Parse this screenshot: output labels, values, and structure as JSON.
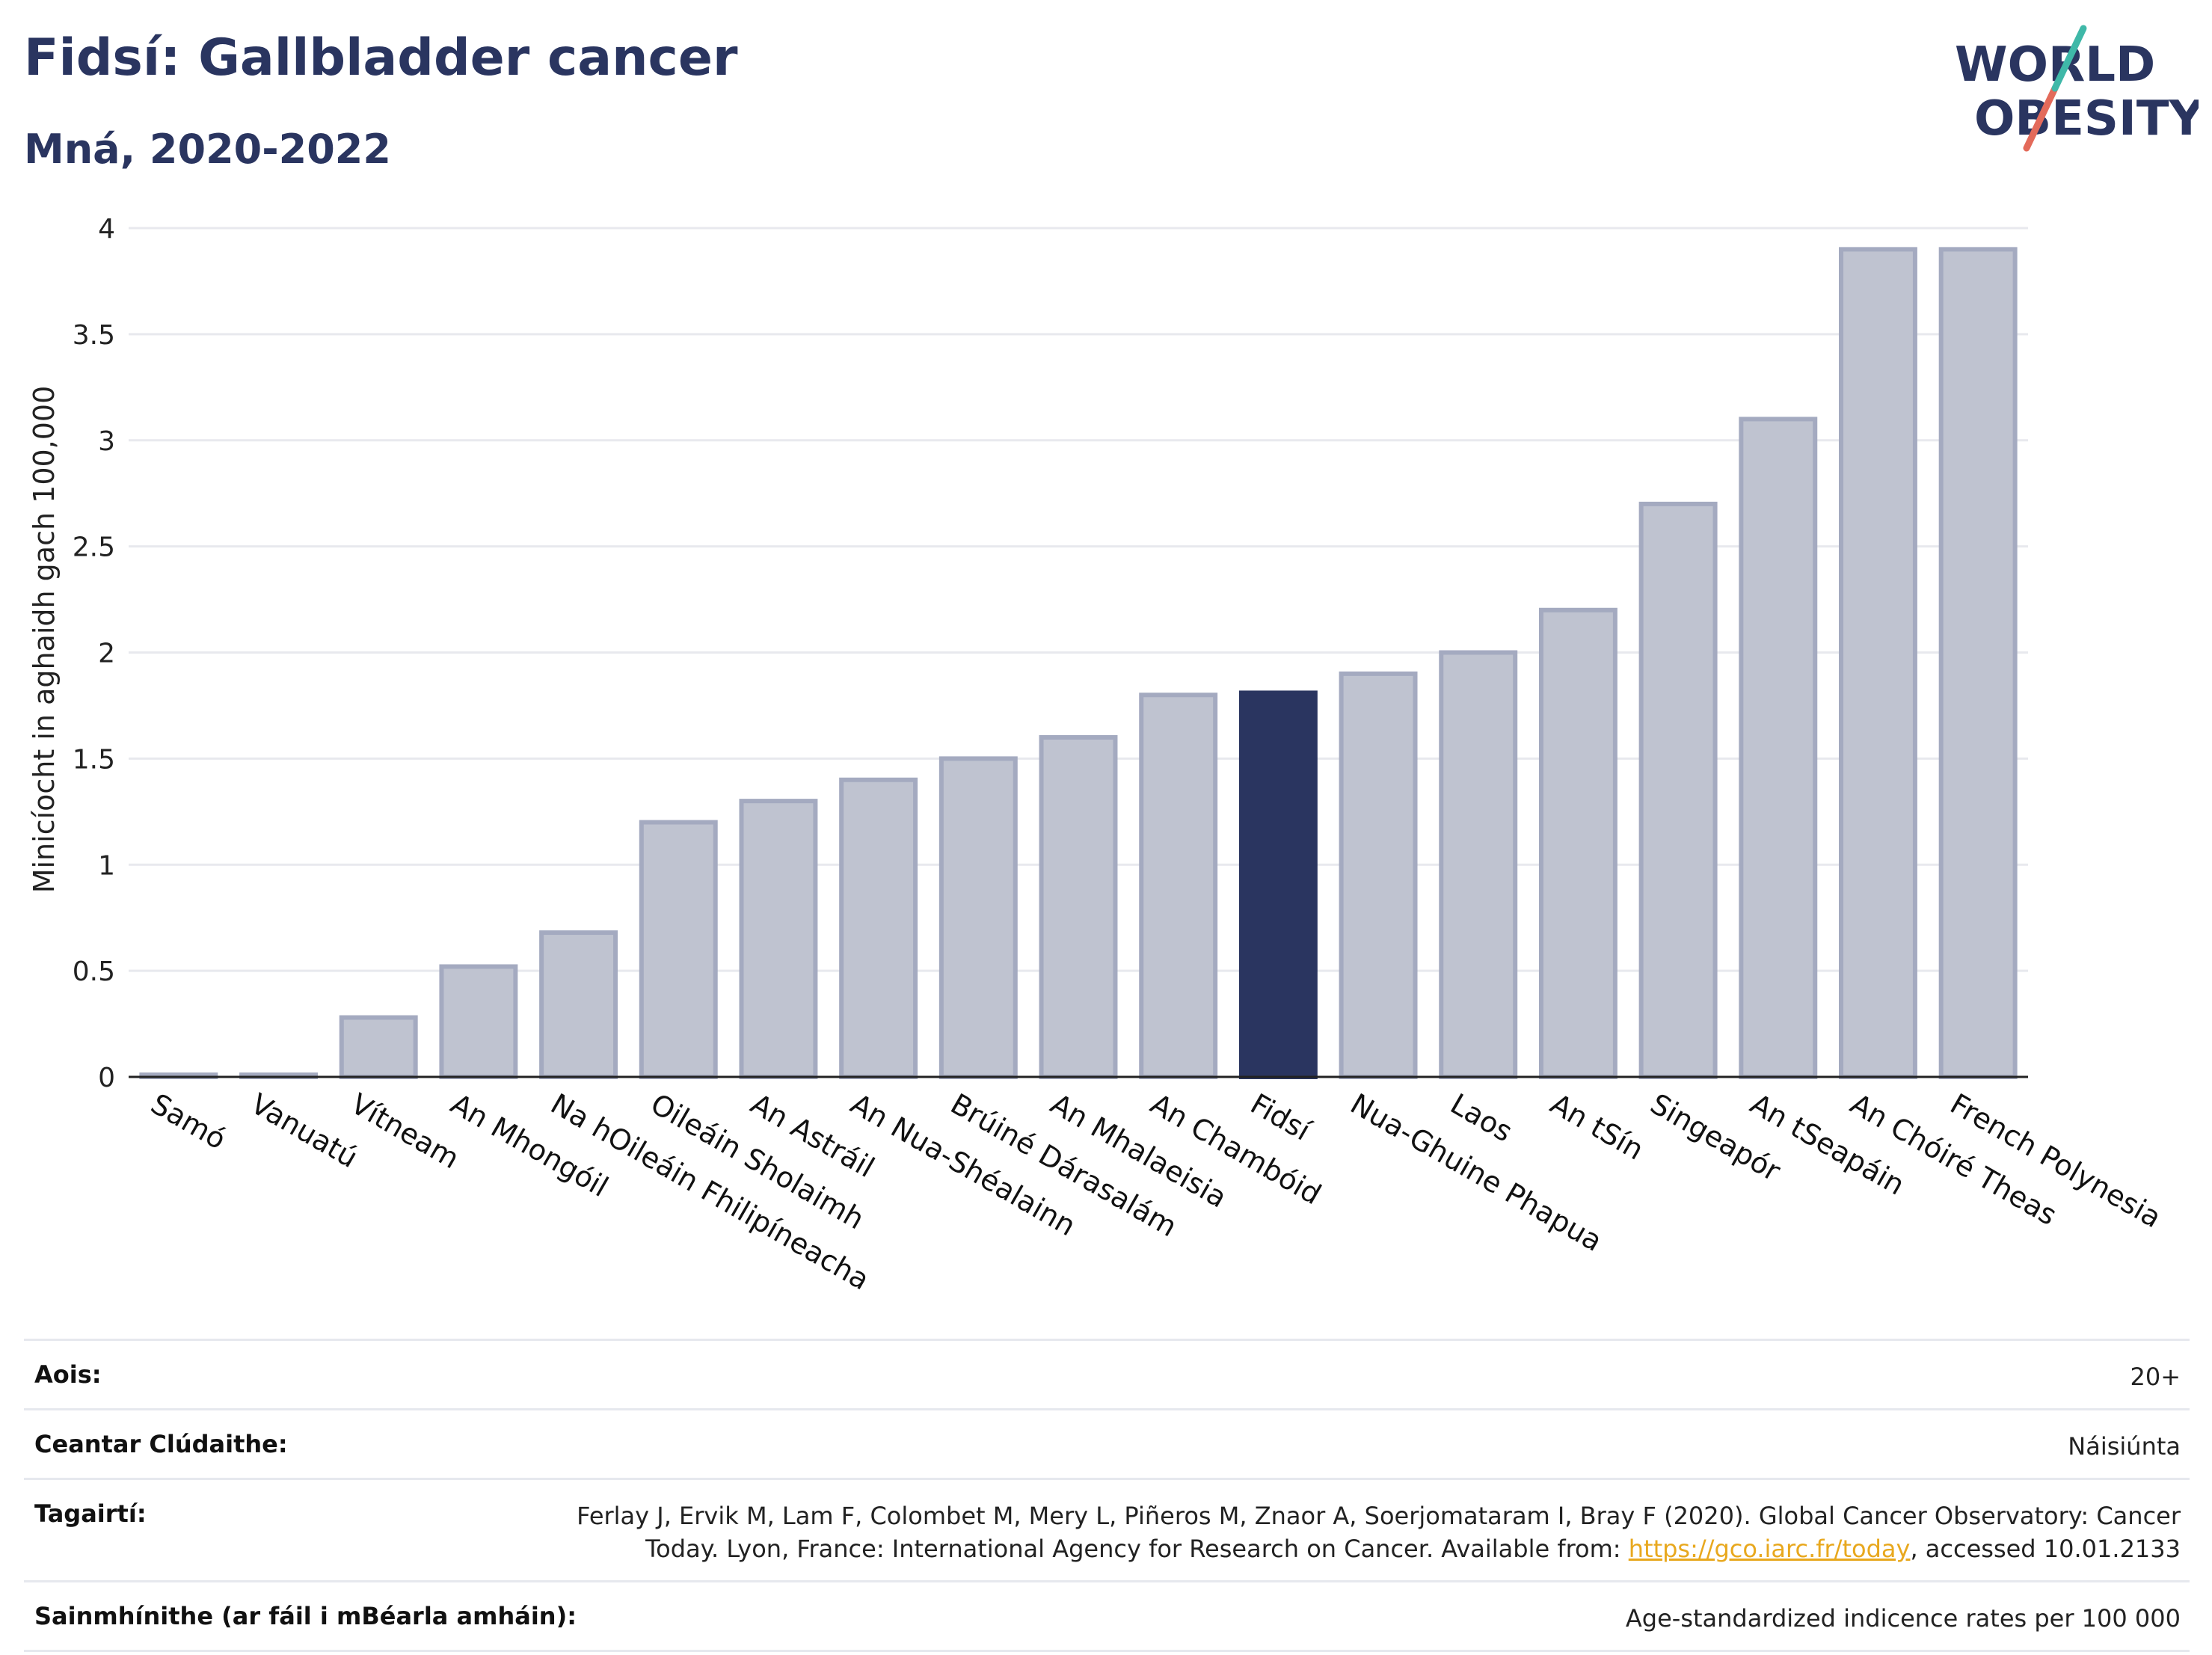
{
  "header": {
    "title": "Fidsí: Gallbladder cancer",
    "subtitle": "Mná, 2020-2022"
  },
  "logo": {
    "line1": "WORLD",
    "line2": "OBESITY"
  },
  "chart_data": {
    "type": "bar",
    "ylabel": "Minicíocht in aghaidh gach 100,000",
    "ylim": [
      0,
      4
    ],
    "yticks": [
      "0",
      "0.5",
      "1",
      "1.5",
      "2",
      "2.5",
      "3",
      "3.5",
      "4"
    ],
    "categories": [
      "Samó",
      "Vanuatú",
      "Vítneam",
      "An Mhongóil",
      "Na hOileáin Fhilipíneacha",
      "Oileáin Sholaimh",
      "An Astráil",
      "An Nua-Shéalainn",
      "Brúiné Dárasalám",
      "An Mhalaeisia",
      "An Chambóid",
      "Fidsí",
      "Nua-Ghuine Phapua",
      "Laos",
      "An tSín",
      "Singeapór",
      "An tSeapáin",
      "An Chóiré Theas",
      "French Polynesia"
    ],
    "values": [
      0.01,
      0.01,
      0.28,
      0.52,
      0.68,
      1.2,
      1.3,
      1.4,
      1.5,
      1.6,
      1.8,
      1.81,
      1.9,
      2.0,
      2.2,
      2.7,
      3.1,
      3.9,
      3.9
    ],
    "highlight": "Fidsí",
    "colors": {
      "bar": "#bfc3d0",
      "bar_border": "#a4aac0",
      "highlight": "#2a3560",
      "grid": "#e8e9ee",
      "axis": "#222222"
    }
  },
  "footer": [
    {
      "label": "Aois:",
      "value": "20+"
    },
    {
      "label": "Ceantar Clúdaithe:",
      "value": "Náisiúnta"
    },
    {
      "label": "Tagairtí:",
      "value_pre": "Ferlay J, Ervik M, Lam F, Colombet M, Mery L, Piñeros M, Znaor A, Soerjomataram I, Bray F (2020). Global Cancer Observatory: Cancer Today. Lyon, France: International Agency for Research on Cancer. Available from: ",
      "link": "https://gco.iarc.fr/today",
      "value_post": ", accessed 10.01.2133"
    },
    {
      "label": "Sainmhínithe (ar fáil i mBéarla amháin):",
      "value": "Age-standardized indicence rates per 100 000"
    }
  ]
}
